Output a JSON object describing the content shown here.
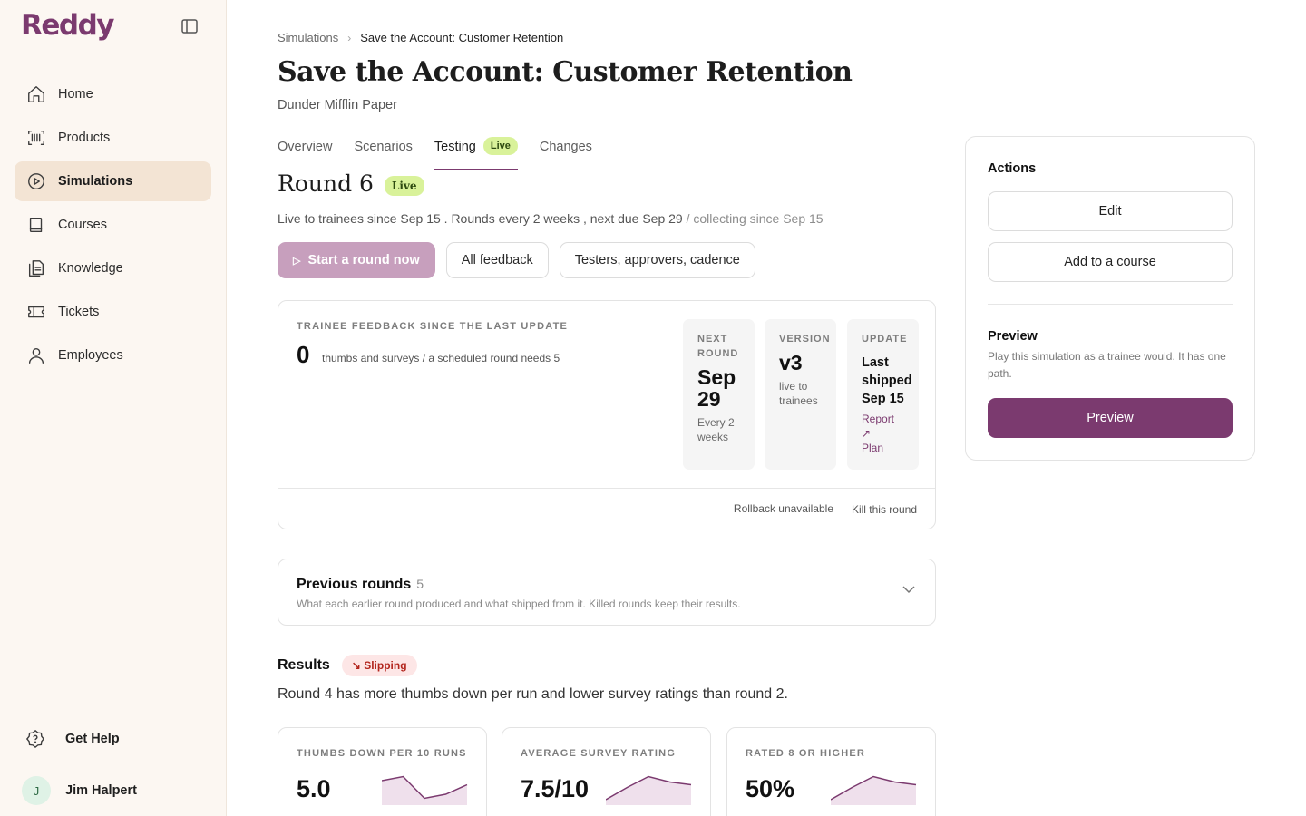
{
  "app": {
    "name": "Reddy"
  },
  "sidebar": {
    "items": [
      {
        "label": "Home",
        "icon": "home-icon"
      },
      {
        "label": "Products",
        "icon": "barcode-icon"
      },
      {
        "label": "Simulations",
        "icon": "play-circle-icon",
        "active": true
      },
      {
        "label": "Courses",
        "icon": "book-icon"
      },
      {
        "label": "Knowledge",
        "icon": "documents-icon"
      },
      {
        "label": "Tickets",
        "icon": "ticket-icon"
      },
      {
        "label": "Employees",
        "icon": "user-icon"
      }
    ],
    "help_label": "Get Help",
    "user": {
      "initial": "J",
      "name": "Jim Halpert"
    }
  },
  "breadcrumb": {
    "parent": "Simulations",
    "current": "Save the Account: Customer Retention"
  },
  "page": {
    "title": "Save the Account: Customer Retention",
    "subtitle": "Dunder Mifflin Paper"
  },
  "tabs": [
    {
      "label": "Overview"
    },
    {
      "label": "Scenarios"
    },
    {
      "label": "Testing",
      "badge": "Live",
      "active": true
    },
    {
      "label": "Changes"
    }
  ],
  "round": {
    "title": "Round 6",
    "badge": "Live",
    "info_main": "Live to trainees since Sep 15 . Rounds every 2 weeks , next due Sep 29",
    "info_muted": " / collecting since Sep 15"
  },
  "buttons": {
    "start_round": "Start a round now",
    "all_feedback": "All feedback",
    "testers": "Testers, approvers, cadence"
  },
  "feedback": {
    "label": "TRAINEE FEEDBACK SINCE THE LAST UPDATE",
    "count": "0",
    "description": "thumbs and surveys / a scheduled round needs 5",
    "next_round": {
      "label": "NEXT ROUND",
      "value": "Sep 29",
      "note": "Every 2 weeks"
    },
    "version": {
      "label": "VERSION",
      "value": "v3",
      "note": "live to trainees"
    },
    "update": {
      "label": "UPDATE",
      "value": "Last shipped Sep 15",
      "report_link": "Report",
      "plan_link": "Plan"
    },
    "rollback": "Rollback unavailable",
    "kill": "Kill this round"
  },
  "previous_rounds": {
    "title": "Previous rounds",
    "count": "5",
    "description": "What each earlier round produced and what shipped from it. Killed rounds keep their results."
  },
  "results": {
    "title": "Results",
    "badge": "Slipping",
    "description": "Round 4 has more thumbs down per run and lower survey ratings than round 2.",
    "metrics": [
      {
        "label": "THUMBS DOWN PER 10 RUNS",
        "value": "5.0",
        "trend": [
          0.2,
          0.05,
          0.85,
          0.7,
          0.35
        ]
      },
      {
        "label": "AVERAGE SURVEY RATING",
        "value": "7.5/10",
        "trend": [
          0.9,
          0.45,
          0.05,
          0.25,
          0.35
        ]
      },
      {
        "label": "RATED 8 OR HIGHER",
        "value": "50%",
        "trend": [
          0.9,
          0.45,
          0.05,
          0.25,
          0.35
        ]
      }
    ]
  },
  "actions": {
    "title": "Actions",
    "edit": "Edit",
    "add_course": "Add to a course",
    "preview_title": "Preview",
    "preview_desc": "Play this simulation as a trainee would. It has one path.",
    "preview_button": "Preview"
  },
  "colors": {
    "brand": "#7b3a6f",
    "live": "#d9f29a",
    "slipping": "#b3261e",
    "sidebar_bg": "#fcf7f2"
  }
}
